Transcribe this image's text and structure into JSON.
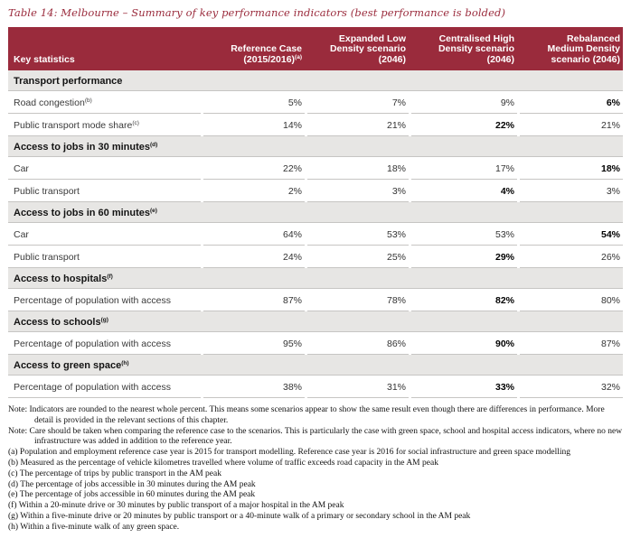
{
  "page": {
    "title": "Table 14: Melbourne – Summary of key performance indicators (best performance is bolded)"
  },
  "colors": {
    "header_red": "#9a2b3c",
    "section_gray": "#e7e6e4",
    "border_gray": "#c6c5c3"
  },
  "table": {
    "header": [
      {
        "label": "Key statistics",
        "sup": ""
      },
      {
        "label": "Reference Case\n(2015/2016)",
        "sup": "(a)"
      },
      {
        "label": "Expanded Low\nDensity scenario\n(2046)",
        "sup": ""
      },
      {
        "label": "Centralised High\nDensity scenario\n(2046)",
        "sup": ""
      },
      {
        "label": "Rebalanced\nMedium Density\nscenario (2046)",
        "sup": ""
      }
    ],
    "rows": [
      {
        "type": "section",
        "label": "Transport performance",
        "sup": ""
      },
      {
        "type": "data",
        "label": "Road congestion",
        "sup": "(b)",
        "values": [
          "5%",
          "7%",
          "9%",
          "6%"
        ],
        "bold": [
          false,
          false,
          false,
          true
        ]
      },
      {
        "type": "data",
        "label": "Public transport mode share",
        "sup": "(c)",
        "values": [
          "14%",
          "21%",
          "22%",
          "21%"
        ],
        "bold": [
          false,
          false,
          true,
          false
        ]
      },
      {
        "type": "section",
        "label": "Access to jobs in 30 minutes",
        "sup": "(d)"
      },
      {
        "type": "data",
        "label": "Car",
        "sup": "",
        "values": [
          "22%",
          "18%",
          "17%",
          "18%"
        ],
        "bold": [
          false,
          false,
          false,
          true
        ]
      },
      {
        "type": "data",
        "label": "Public transport",
        "sup": "",
        "values": [
          "2%",
          "3%",
          "4%",
          "3%"
        ],
        "bold": [
          false,
          false,
          true,
          false
        ]
      },
      {
        "type": "section",
        "label": "Access to jobs in 60 minutes",
        "sup": "(e)"
      },
      {
        "type": "data",
        "label": "Car",
        "sup": "",
        "values": [
          "64%",
          "53%",
          "53%",
          "54%"
        ],
        "bold": [
          false,
          false,
          false,
          true
        ]
      },
      {
        "type": "data",
        "label": "Public transport",
        "sup": "",
        "values": [
          "24%",
          "25%",
          "29%",
          "26%"
        ],
        "bold": [
          false,
          false,
          true,
          false
        ]
      },
      {
        "type": "section",
        "label": "Access to hospitals",
        "sup": "(f)"
      },
      {
        "type": "data",
        "label": "Percentage of population with access",
        "sup": "",
        "values": [
          "87%",
          "78%",
          "82%",
          "80%"
        ],
        "bold": [
          false,
          false,
          true,
          false
        ]
      },
      {
        "type": "section",
        "label": "Access to schools",
        "sup": "(g)"
      },
      {
        "type": "data",
        "label": "Percentage of population with access",
        "sup": "",
        "values": [
          "95%",
          "86%",
          "90%",
          "87%"
        ],
        "bold": [
          false,
          false,
          true,
          false
        ]
      },
      {
        "type": "section",
        "label": "Access to green space",
        "sup": "(h)"
      },
      {
        "type": "data",
        "label": "Percentage of population with access",
        "sup": "",
        "values": [
          "38%",
          "31%",
          "33%",
          "32%"
        ],
        "bold": [
          false,
          false,
          true,
          false
        ]
      }
    ]
  },
  "notes": [
    {
      "tag": "Note:",
      "text": "Indicators are rounded to the nearest whole percent. This means some scenarios appear to show the same result even though there are differences in performance. More detail is provided in the relevant sections of this chapter."
    },
    {
      "tag": "Note:",
      "text": "Care should be taken when comparing the reference case to the scenarios. This is particularly the case with green space, school and hospital access indicators, where no new infrastructure was added in addition to the reference year."
    },
    {
      "tag": "(a)",
      "text": "Population and employment reference case year is 2015 for transport modelling. Reference case year is 2016 for social infrastructure and green space modelling"
    },
    {
      "tag": "(b)",
      "text": "Measured as the percentage of vehicle kilometres travelled where volume of traffic exceeds road capacity in the AM peak"
    },
    {
      "tag": "(c)",
      "text": "The percentage of trips by public transport in the AM peak"
    },
    {
      "tag": "(d)",
      "text": "The percentage of jobs accessible in 30 minutes during the AM peak"
    },
    {
      "tag": "(e)",
      "text": "The percentage of jobs accessible in 60 minutes during the AM peak"
    },
    {
      "tag": "(f)",
      "text": "Within a 20-minute drive or 30 minutes by public transport of a major hospital in the AM peak"
    },
    {
      "tag": "(g)",
      "text": "Within a five-minute drive or 20 minutes by public transport or a 40-minute walk of a primary or secondary school in the AM peak"
    },
    {
      "tag": "(h)",
      "text": "Within a five-minute walk of any green space."
    }
  ]
}
